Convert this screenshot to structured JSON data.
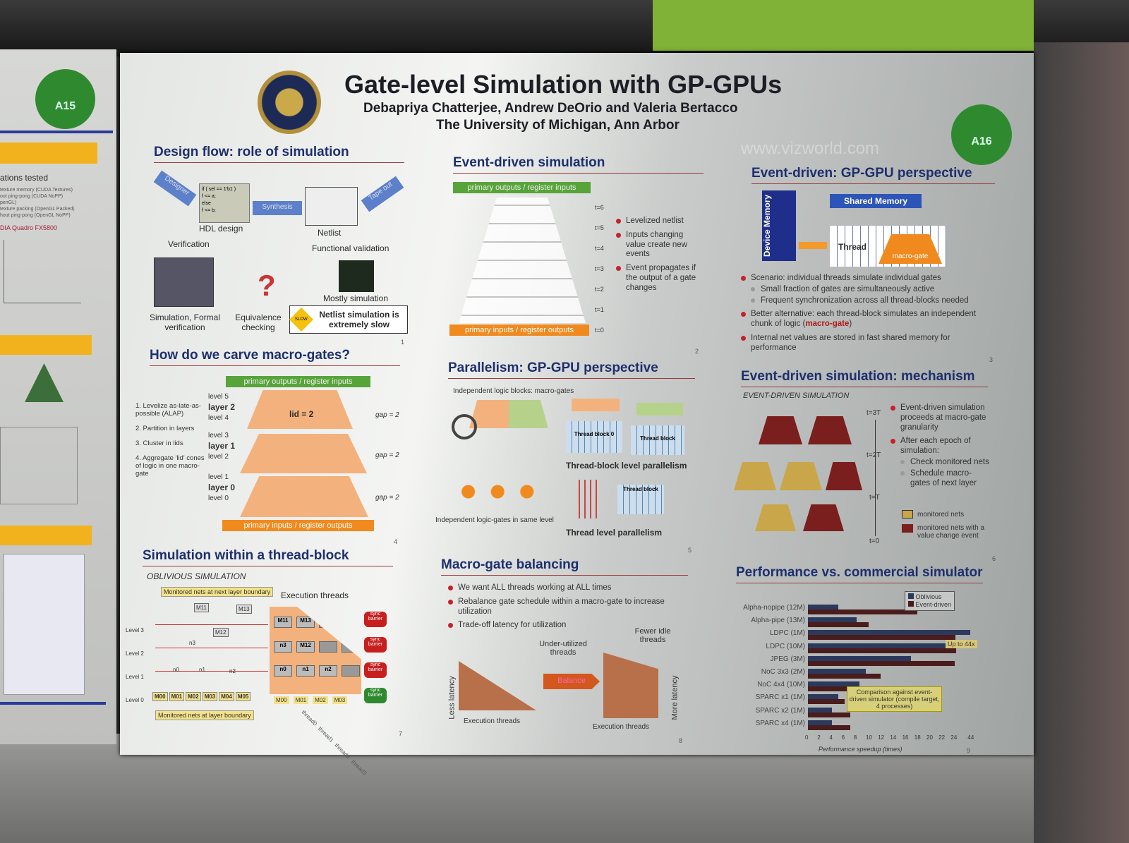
{
  "poster": {
    "badge_left": "A15",
    "badge_right": "A16",
    "title": "Gate-level Simulation with GP-GPUs",
    "authors": "Debapriya Chatterjee, Andrew DeOrio and Valeria Bertacco",
    "affiliation": "The University of Michigan, Ann Arbor",
    "seal_text": "THE UNIVERSITY OF MICHIGAN 1817",
    "watermark": "www.vizworld.com"
  },
  "left_poster": {
    "heading": "ations tested",
    "items": [
      "texture memory (CUDA Textures)",
      "out ping-pong (CUDA NoPP)",
      "penGL)",
      "texture packing (OpenGL Packed)",
      "hout ping-pong (OpenGL NoPP)"
    ],
    "gpu": "DIA Quadro FX5800"
  },
  "design_flow": {
    "heading": "Design flow: role of simulation",
    "designer": "Designer",
    "code": [
      "if ( sel == 1'b1 )",
      "f <= a;",
      "else",
      "f <= b;"
    ],
    "hdl": "HDL design",
    "synthesis": "Synthesis",
    "netlist": "Netlist",
    "tapeout": "Tape out",
    "verification": "Verification",
    "functional": "Functional validation",
    "sim": "Simulation, Formal verification",
    "equiv": "Equivalence checking",
    "mostly": "Mostly simulation",
    "slow_sign": "SLOW",
    "slow": "Netlist simulation is extremely slow",
    "num": "1"
  },
  "event_sim": {
    "heading": "Event-driven simulation",
    "top": "primary outputs / register inputs",
    "bottom": "primary inputs / register outputs",
    "times": [
      "t=6",
      "t=5",
      "t=4",
      "t=3",
      "t=2",
      "t=1",
      "t=0"
    ],
    "bullets": [
      "Levelized netlist",
      "Inputs changing value create new events",
      "Event propagates if the output of a gate changes"
    ],
    "num": "2"
  },
  "gpgpu": {
    "heading": "Event-driven: GP-GPU perspective",
    "device": "Device Memory",
    "shared": "Shared Memory",
    "thread": "Thread",
    "macro": "macro-gate",
    "bullets": [
      {
        "text": "Scenario: individual threads simulate individual gates",
        "sub": [
          "Small fraction of gates are simultaneously active",
          "Frequent synchronization across all thread-blocks needed"
        ]
      },
      {
        "text": "Better alternative: each thread-block simulates an independent chunk of logic (",
        "hl": "macro-gate",
        "end": ")"
      },
      {
        "text": "Internal net values are stored in fast shared memory for performance"
      }
    ],
    "num": "3"
  },
  "carve": {
    "heading": "How do we carve macro-gates?",
    "steps": [
      "1. Levelize as-late-as-possible (ALAP)",
      "2. Partition in layers",
      "3. Cluster in lids",
      "4. Aggregate 'lid' cones of logic in one macro-gate"
    ],
    "levels": [
      "level 5",
      "layer 2",
      "level 4",
      "level 3",
      "layer 1",
      "level 2",
      "level 1",
      "layer 0",
      "level 0"
    ],
    "lid": "lid = 2",
    "gaps": [
      "gap = 2",
      "gap = 2",
      "gap = 2"
    ],
    "top": "primary outputs / register inputs",
    "bottom": "primary inputs / register outputs",
    "num": "4"
  },
  "parallel": {
    "heading": "Parallelism: GP-GPU perspective",
    "blocks": "Independent logic blocks: macro-gates",
    "tb0": "Thread block 0",
    "tb": "Thread block",
    "tbl": "Thread-block level parallelism",
    "gates": "Independent logic-gates in same level",
    "tl": "Thread level parallelism",
    "num": "5"
  },
  "mechanism": {
    "heading": "Event-driven simulation: mechanism",
    "sub": "EVENT-DRIVEN SIMULATION",
    "times": [
      "t=3T",
      "t=2T",
      "t=T",
      "t=0"
    ],
    "bullets": [
      {
        "text": "Event-driven simulation proceeds at macro-gate granularity"
      },
      {
        "text": "After each epoch of simulation:",
        "sub": [
          "Check monitored nets",
          "Schedule macro-gates of next layer"
        ]
      }
    ],
    "legend": [
      {
        "label": "monitored nets",
        "color": "#c9a64a"
      },
      {
        "label": "monitored nets with a value change event",
        "color": "#7a1e1e"
      }
    ],
    "num": "6"
  },
  "threadblock": {
    "heading": "Simulation within a thread-block",
    "sub": "OBLIVIOUS SIMULATION",
    "mon_top": "Monitored nets at next layer boundary",
    "exec": "Execution threads",
    "mon_bottom": "Monitored nets at layer boundary",
    "levels": [
      "Level 3",
      "Level 2",
      "Level 1",
      "Level 0"
    ],
    "nets": [
      "M11",
      "M13",
      "M12",
      "n3",
      "n1",
      "n2",
      "n0"
    ],
    "bottom_nets": [
      "M00",
      "M01",
      "M02",
      "M03",
      "M04",
      "M05"
    ],
    "grid": [
      "M11",
      "M13",
      "",
      "",
      "n3",
      "M12",
      "",
      "",
      "n0",
      "n1",
      "n2",
      ""
    ],
    "grid_bottom": [
      "M00",
      "M01",
      "M02",
      "M03"
    ],
    "threads": [
      "thread0",
      "thread1",
      "thread2",
      "thread3"
    ],
    "sync": "sync barrier",
    "num": "7"
  },
  "balancing": {
    "heading": "Macro-gate balancing",
    "bullets": [
      "We want ALL threads working at ALL times",
      "Rebalance gate schedule within a macro-gate to increase utilization",
      "Trade-off latency for utilization"
    ],
    "under": "Under-utilized threads",
    "fewer": "Fewer idle threads",
    "balance": "Balance",
    "less": "Less latency",
    "more": "More latency",
    "exec": "Execution threads",
    "num": "8"
  },
  "chart_data": {
    "type": "bar",
    "orientation": "horizontal",
    "title": "Performance vs. commercial simulator",
    "xlabel": "Performance speedup (times)",
    "categories": [
      "Alpha-nopipe (12M)",
      "Alpha-pipe (13M)",
      "LDPC (1M)",
      "LDPC (10M)",
      "JPEG (3M)",
      "NoC 3x3 (2M)",
      "NoC 4x4 (10M)",
      "SPARC x1 (1M)",
      "SPARC x2 (1M)",
      "SPARC x4 (1M)"
    ],
    "series": [
      {
        "name": "Oblivious",
        "color": "#2b3a5c",
        "values": [
          5,
          8,
          44,
          30,
          17,
          9.5,
          8.5,
          5,
          4,
          4
        ]
      },
      {
        "name": "Event-driven",
        "color": "#4a1c1c",
        "values": [
          18,
          10,
          26,
          27,
          25,
          12,
          10,
          6,
          7,
          7
        ]
      }
    ],
    "xticks": [
      "0",
      "2",
      "4",
      "6",
      "8",
      "10",
      "12",
      "14",
      "16",
      "18",
      "20",
      "22",
      "24",
      "44"
    ],
    "axis_break": "24-44",
    "legend": "top-right",
    "annotation": "Up to 44x",
    "note": "Comparison against event-driven simulator (compile target, 4 processes)",
    "num": "9"
  }
}
